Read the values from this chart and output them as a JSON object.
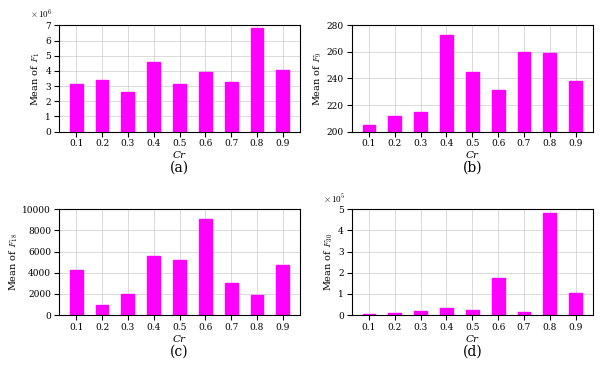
{
  "cr_labels": [
    0.1,
    0.2,
    0.3,
    0.4,
    0.5,
    0.6,
    0.7,
    0.8,
    0.9
  ],
  "cr_tick_labels": [
    "0.1",
    "0.2",
    "0.3",
    "0.4",
    "0.5",
    "0.6",
    "0.7",
    "0.8",
    "0.9"
  ],
  "f1_values": [
    3150000.0,
    3400000.0,
    2600000.0,
    4600000.0,
    3150000.0,
    3900000.0,
    3300000.0,
    6800000.0,
    4050000.0
  ],
  "f9_values": [
    205,
    212,
    215,
    273,
    245,
    231,
    260,
    259,
    238
  ],
  "f18_values": [
    4300,
    1000,
    2000,
    5600,
    5200,
    9100,
    3050,
    1900,
    4750
  ],
  "f30_values": [
    5000.0,
    12000.0,
    18000.0,
    32000.0,
    25000.0,
    175000.0,
    15000.0,
    480000.0,
    105000.0
  ],
  "bar_color": "#FF00FF",
  "xlabel": "Cr",
  "ylabel_a": "Mean of $F_1$",
  "ylabel_b": "Mean of $F_9$",
  "ylabel_c": "Mean of $F_{18}$",
  "ylabel_d": "Mean of $F_{30}$",
  "label_a": "(a)",
  "label_b": "(b)",
  "label_c": "(c)",
  "label_d": "(d)",
  "f1_ylim": [
    0,
    7000000.0
  ],
  "f9_ylim": [
    200,
    280
  ],
  "f18_ylim": [
    0,
    10000
  ],
  "f30_ylim": [
    0,
    500000.0
  ],
  "bar_width": 0.5
}
